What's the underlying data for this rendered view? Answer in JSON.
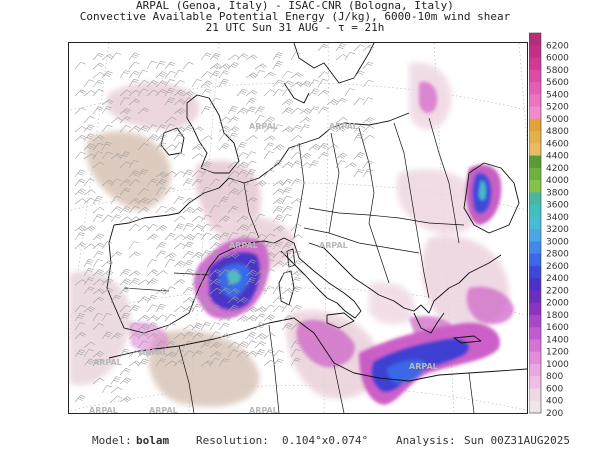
{
  "title": {
    "line1": "ARPAL (Genoa, Italy)  -  ISAC-CNR (Bologna, Italy)",
    "line2": "Convective Available Potential Energy (J/kg), 6000-10m wind shear",
    "line3": "21 UTC Sun 31 AUG  -  τ = 21h"
  },
  "colorbar": {
    "ticks": [
      "6200",
      "6000",
      "5800",
      "5600",
      "5400",
      "5200",
      "5000",
      "4800",
      "4600",
      "4400",
      "4200",
      "4000",
      "3800",
      "3600",
      "3400",
      "3200",
      "3000",
      "2800",
      "2600",
      "2400",
      "2200",
      "2000",
      "1800",
      "1600",
      "1400",
      "1200",
      "1000",
      "800",
      "600",
      "400",
      "200"
    ],
    "colors": [
      "#b52d79",
      "#c22f86",
      "#cf3a95",
      "#dc4ca6",
      "#e35fb3",
      "#ea75c0",
      "#f08ccd",
      "#e0a33a",
      "#e3b04c",
      "#e6bd60",
      "#5a9b37",
      "#6fb03f",
      "#86c24a",
      "#49b5a6",
      "#3fbfc0",
      "#46bcd5",
      "#4aa7e6",
      "#4188ea",
      "#3a68e6",
      "#3c48d8",
      "#4a32c9",
      "#6a2dbd",
      "#8a34c2",
      "#a848c8",
      "#c25bcf",
      "#d572d6",
      "#e38ddc",
      "#eba7e1",
      "#f0c0e4",
      "#efd7e6",
      "#efe6ea"
    ]
  },
  "map": {
    "watermark": "ARPAL",
    "colors": {
      "land_pink": "#e8c7d3",
      "beige": "#d6bfae",
      "magenta": "#d34fc0",
      "blue": "#3a5fe0",
      "cyan": "#3fbfc0",
      "barb": "#9a9a9a"
    }
  },
  "footer": {
    "model_label": "Model:",
    "model_value": "bolam",
    "resolution_label": "Resolution:",
    "resolution_value": "0.104°x0.074°",
    "analysis_label": "Analysis:",
    "analysis_value": "Sun 00Z31AUG2025"
  }
}
